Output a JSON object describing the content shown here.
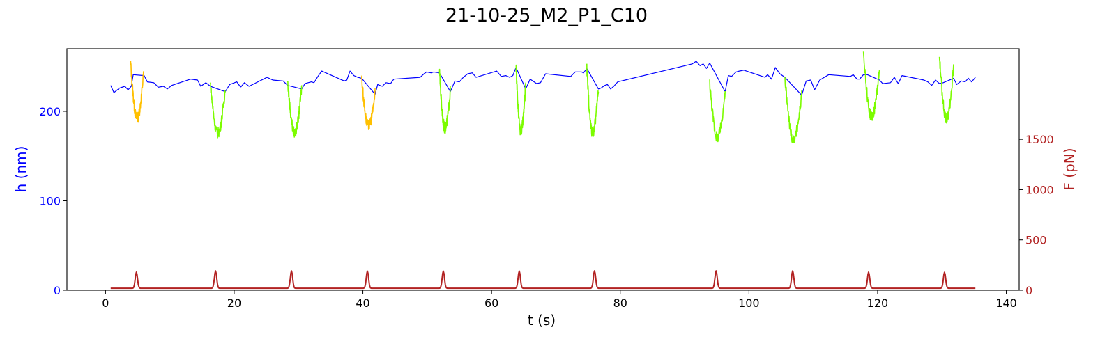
{
  "chart_data": {
    "type": "line",
    "title": "21-10-25_M2_P1_C10",
    "xlabel": "t (s)",
    "ylabel_left": "h (nm)",
    "ylabel_right": "F (pN)",
    "xlim": [
      -6,
      142
    ],
    "ylim_left": [
      0,
      270
    ],
    "ylim_right": [
      0,
      2400
    ],
    "x_ticks": [
      0,
      20,
      40,
      60,
      80,
      100,
      120,
      140
    ],
    "y_left_ticks": [
      0,
      100,
      200
    ],
    "y_right_ticks": [
      0,
      500,
      1000,
      1500
    ],
    "grid": false,
    "colors": {
      "height": "#0000ff",
      "force": "#b22222",
      "left_axis": "#0000ff",
      "right_axis": "#b22222",
      "pull_yellow": "#ffc000",
      "pull_green": "#7cfc00"
    },
    "series": [
      {
        "axis": "left",
        "color": "#0000ff",
        "baseline": [
          [
            0.8,
            229
          ],
          [
            1.3,
            221
          ],
          [
            2.2,
            226
          ],
          [
            3.0,
            228
          ],
          [
            3.5,
            224
          ],
          [
            4.0,
            228
          ],
          [
            4.3,
            241
          ],
          [
            6.0,
            240
          ],
          [
            6.5,
            233
          ],
          [
            7.5,
            232
          ],
          [
            8.2,
            227
          ],
          [
            9.0,
            228
          ],
          [
            9.6,
            225
          ],
          [
            10.3,
            229
          ],
          [
            13.2,
            236
          ],
          [
            14.3,
            235
          ],
          [
            14.8,
            228
          ],
          [
            15.6,
            232
          ],
          [
            16.3,
            228
          ],
          [
            18.6,
            222
          ],
          [
            19.3,
            230
          ],
          [
            20.4,
            233
          ],
          [
            21.0,
            227
          ],
          [
            21.6,
            232
          ],
          [
            22.3,
            228
          ],
          [
            25.1,
            238
          ],
          [
            26.0,
            235
          ],
          [
            27.6,
            234
          ],
          [
            28.3,
            229
          ],
          [
            30.5,
            225
          ],
          [
            31.0,
            231
          ],
          [
            32.0,
            233
          ],
          [
            32.4,
            232
          ],
          [
            33.0,
            239
          ],
          [
            33.6,
            245
          ],
          [
            37.1,
            234
          ],
          [
            37.5,
            235
          ],
          [
            38.0,
            245
          ],
          [
            38.6,
            240
          ],
          [
            39.2,
            238
          ],
          [
            39.8,
            237
          ],
          [
            41.9,
            219
          ],
          [
            42.3,
            230
          ],
          [
            43.0,
            228
          ],
          [
            43.6,
            232
          ],
          [
            44.3,
            231
          ],
          [
            44.8,
            236
          ],
          [
            48.9,
            238
          ],
          [
            49.5,
            242
          ],
          [
            49.9,
            244
          ],
          [
            50.6,
            243
          ],
          [
            51.0,
            244
          ],
          [
            51.9,
            243
          ],
          [
            53.6,
            222
          ],
          [
            54.3,
            234
          ],
          [
            55.0,
            233
          ],
          [
            55.6,
            238
          ],
          [
            56.3,
            242
          ],
          [
            57.0,
            243
          ],
          [
            57.6,
            238
          ],
          [
            60.8,
            245
          ],
          [
            61.5,
            239
          ],
          [
            62.2,
            240
          ],
          [
            62.8,
            238
          ],
          [
            63.3,
            240
          ],
          [
            63.8,
            249
          ],
          [
            65.3,
            225
          ],
          [
            66.0,
            236
          ],
          [
            67.0,
            231
          ],
          [
            67.6,
            232
          ],
          [
            68.4,
            242
          ],
          [
            72.3,
            239
          ],
          [
            73.0,
            244
          ],
          [
            74.0,
            244
          ],
          [
            74.3,
            243
          ],
          [
            74.8,
            248
          ],
          [
            76.6,
            225
          ],
          [
            77.0,
            226
          ],
          [
            77.6,
            229
          ],
          [
            78.0,
            230
          ],
          [
            78.5,
            225
          ],
          [
            79.0,
            228
          ],
          [
            79.6,
            233
          ],
          [
            91.2,
            253
          ],
          [
            91.8,
            256
          ],
          [
            92.4,
            251
          ],
          [
            92.9,
            253
          ],
          [
            93.4,
            248
          ],
          [
            93.9,
            254
          ],
          [
            96.3,
            222
          ],
          [
            96.8,
            240
          ],
          [
            97.3,
            239
          ],
          [
            98.0,
            244
          ],
          [
            98.5,
            245
          ],
          [
            99.2,
            246
          ],
          [
            102.5,
            238
          ],
          [
            102.9,
            241
          ],
          [
            103.5,
            236
          ],
          [
            104.1,
            249
          ],
          [
            104.8,
            242
          ],
          [
            105.6,
            238
          ],
          [
            108.2,
            218
          ],
          [
            108.9,
            234
          ],
          [
            109.6,
            235
          ],
          [
            110.2,
            224
          ],
          [
            111.0,
            235
          ],
          [
            112.4,
            241
          ],
          [
            115.8,
            239
          ],
          [
            116.2,
            241
          ],
          [
            116.8,
            236
          ],
          [
            117.2,
            236
          ],
          [
            117.8,
            241
          ],
          [
            118.4,
            241
          ],
          [
            120.3,
            235
          ],
          [
            120.8,
            231
          ],
          [
            122.0,
            232
          ],
          [
            122.6,
            238
          ],
          [
            123.2,
            231
          ],
          [
            123.8,
            240
          ],
          [
            127.2,
            235
          ],
          [
            127.8,
            233
          ],
          [
            128.4,
            229
          ],
          [
            129.0,
            235
          ],
          [
            129.6,
            231
          ],
          [
            130.2,
            232
          ],
          [
            131.8,
            237
          ],
          [
            132.3,
            230
          ],
          [
            133.0,
            234
          ],
          [
            133.6,
            233
          ],
          [
            134.1,
            237
          ],
          [
            134.6,
            233
          ],
          [
            135.2,
            238
          ]
        ],
        "pull_segments": [
          {
            "color": "#ffc000",
            "x_start": 3.9,
            "x_end": 5.9,
            "top": 254,
            "min": 192,
            "end": 241
          },
          {
            "color": "#7cfc00",
            "x_start": 16.3,
            "x_end": 18.6,
            "top": 231,
            "min": 176,
            "end": 224
          },
          {
            "color": "#7cfc00",
            "x_start": 28.3,
            "x_end": 30.5,
            "top": 233,
            "min": 176,
            "end": 228
          },
          {
            "color": "#ffc000",
            "x_start": 39.8,
            "x_end": 41.9,
            "top": 238,
            "min": 184,
            "end": 220
          },
          {
            "color": "#7cfc00",
            "x_start": 51.9,
            "x_end": 53.6,
            "top": 245,
            "min": 181,
            "end": 225
          },
          {
            "color": "#7cfc00",
            "x_start": 63.8,
            "x_end": 65.3,
            "top": 249,
            "min": 178,
            "end": 229
          },
          {
            "color": "#7cfc00",
            "x_start": 74.8,
            "x_end": 76.6,
            "top": 248,
            "min": 176,
            "end": 226
          },
          {
            "color": "#7cfc00",
            "x_start": 93.9,
            "x_end": 96.3,
            "top": 232,
            "min": 171,
            "end": 222
          },
          {
            "color": "#7cfc00",
            "x_start": 105.6,
            "x_end": 108.2,
            "top": 236,
            "min": 169,
            "end": 218
          },
          {
            "color": "#7cfc00",
            "x_start": 117.8,
            "x_end": 120.3,
            "top": 267,
            "min": 194,
            "end": 248
          },
          {
            "color": "#7cfc00",
            "x_start": 129.6,
            "x_end": 131.8,
            "top": 262,
            "min": 192,
            "end": 250
          }
        ]
      },
      {
        "axis": "right",
        "color": "#b22222",
        "baseline": 20,
        "x_range": [
          0.8,
          135.2
        ],
        "peaks": [
          {
            "x": 4.8,
            "value": 180
          },
          {
            "x": 17.1,
            "value": 192
          },
          {
            "x": 28.9,
            "value": 192
          },
          {
            "x": 40.7,
            "value": 190
          },
          {
            "x": 52.5,
            "value": 190
          },
          {
            "x": 64.3,
            "value": 190
          },
          {
            "x": 76.0,
            "value": 192
          },
          {
            "x": 94.9,
            "value": 192
          },
          {
            "x": 106.8,
            "value": 192
          },
          {
            "x": 118.6,
            "value": 180
          },
          {
            "x": 130.4,
            "value": 178
          }
        ]
      }
    ]
  }
}
